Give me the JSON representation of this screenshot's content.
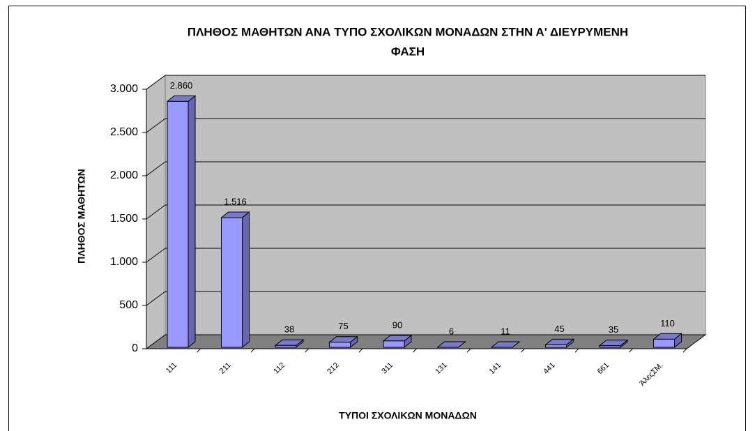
{
  "chart_data": {
    "type": "bar3d",
    "title": [
      "ΠΛΗΘΟΣ ΜΑΘΗΤΩΝ ΑΝΑ ΤΥΠΟ ΣΧΟΛΙΚΩΝ  ΜΟΝΑΔΩΝ ΣΤΗΝ Α' ΔΙΕΥΡΥΜΕΝΗ",
      "ΦΑΣΗ"
    ],
    "x_label": "ΤΥΠΟΙ ΣΧΟΛΙΚΩΝ ΜΟΝΑΔΩΝ",
    "y_label": "ΠΛΗΘΟΣ ΜΑΘΗΤΩΝ",
    "categories": [
      "111",
      "211",
      "112",
      "212",
      "311",
      "131",
      "141",
      "441",
      "661",
      "ΆλεςΣΜ."
    ],
    "values": [
      2860,
      1516,
      38,
      75,
      90,
      6,
      11,
      45,
      35,
      110
    ],
    "value_labels": [
      "2.860",
      "1.516",
      "38",
      "75",
      "90",
      "6",
      "11",
      "45",
      "35",
      "110"
    ],
    "color": "#9999ff",
    "ylim": [
      0,
      3000
    ],
    "yticks": [
      0,
      500,
      {
        "value": 1000,
        "label": "1.000"
      },
      {
        "value": 1500,
        "label": "1.500"
      },
      {
        "value": 2000,
        "label": "2.000"
      },
      {
        "value": 2500,
        "label": "2.500"
      },
      {
        "value": 3000,
        "label": "3.000"
      }
    ],
    "grid": true
  }
}
